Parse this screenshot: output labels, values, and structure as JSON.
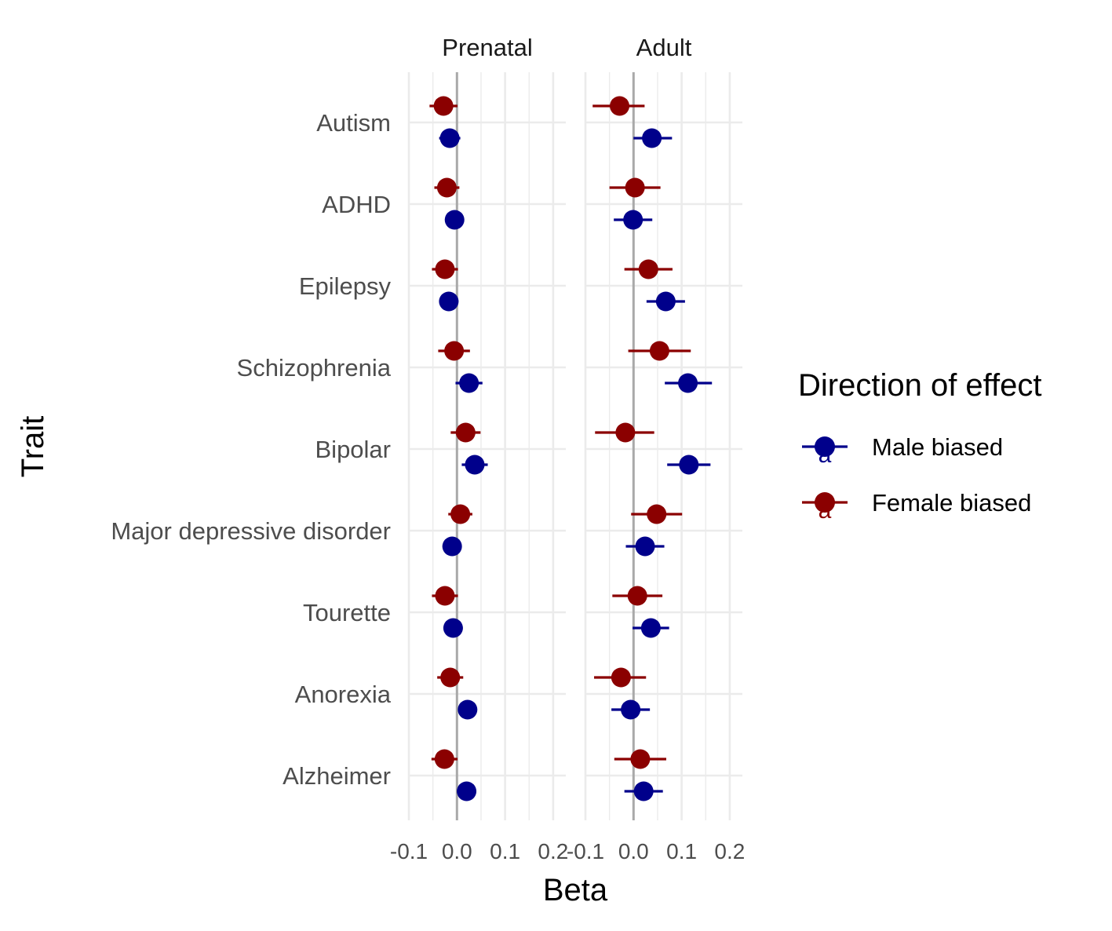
{
  "chart_data": {
    "type": "forest",
    "xlabel": "Beta",
    "ylabel": "Trait",
    "facets": [
      "Prenatal",
      "Adult"
    ],
    "traits": [
      "Autism",
      "ADHD",
      "Epilepsy",
      "Schizophrenia",
      "Bipolar",
      "Major depressive disorder",
      "Tourette",
      "Anorexia",
      "Alzheimer"
    ],
    "x_ticks": [
      "-0.1",
      "0.0",
      "0.1",
      "0.2"
    ],
    "xlim": [
      -0.1,
      0.2
    ],
    "zero_line": 0,
    "legend": {
      "title": "Direction of effect",
      "position": "right",
      "glyph": "a"
    },
    "series": [
      {
        "name": "Male biased",
        "color": "#00008b",
        "prenatal": {
          "beta": [
            -0.015,
            -0.005,
            -0.017,
            0.025,
            0.037,
            -0.01,
            -0.008,
            0.022,
            0.02
          ],
          "lo": [
            -0.037,
            -0.025,
            -0.037,
            -0.003,
            0.01,
            -0.03,
            -0.028,
            0.002,
            0.0
          ],
          "hi": [
            0.007,
            0.015,
            0.003,
            0.053,
            0.064,
            0.01,
            0.012,
            0.042,
            0.04
          ]
        },
        "adult": {
          "beta": [
            0.038,
            -0.001,
            0.067,
            0.113,
            0.115,
            0.024,
            0.036,
            -0.006,
            0.021
          ],
          "lo": [
            0.0,
            -0.041,
            0.027,
            0.065,
            0.07,
            -0.016,
            -0.002,
            -0.046,
            -0.019
          ],
          "hi": [
            0.08,
            0.039,
            0.107,
            0.163,
            0.16,
            0.064,
            0.074,
            0.034,
            0.061
          ]
        }
      },
      {
        "name": "Female biased",
        "color": "#8b0000",
        "prenatal": {
          "beta": [
            -0.028,
            -0.021,
            -0.025,
            -0.006,
            0.018,
            0.007,
            -0.025,
            -0.014,
            -0.026
          ],
          "lo": [
            -0.057,
            -0.047,
            -0.052,
            -0.039,
            -0.013,
            -0.018,
            -0.052,
            -0.041,
            -0.053
          ],
          "hi": [
            0.001,
            0.005,
            0.002,
            0.027,
            0.049,
            0.032,
            0.002,
            0.013,
            0.001
          ]
        },
        "adult": {
          "beta": [
            -0.029,
            0.003,
            0.031,
            0.054,
            -0.017,
            0.048,
            0.008,
            -0.026,
            0.014
          ],
          "lo": [
            -0.085,
            -0.05,
            -0.019,
            -0.011,
            -0.08,
            -0.005,
            -0.044,
            -0.082,
            -0.04
          ],
          "hi": [
            0.023,
            0.056,
            0.081,
            0.119,
            0.043,
            0.101,
            0.06,
            0.026,
            0.068
          ]
        }
      }
    ]
  }
}
